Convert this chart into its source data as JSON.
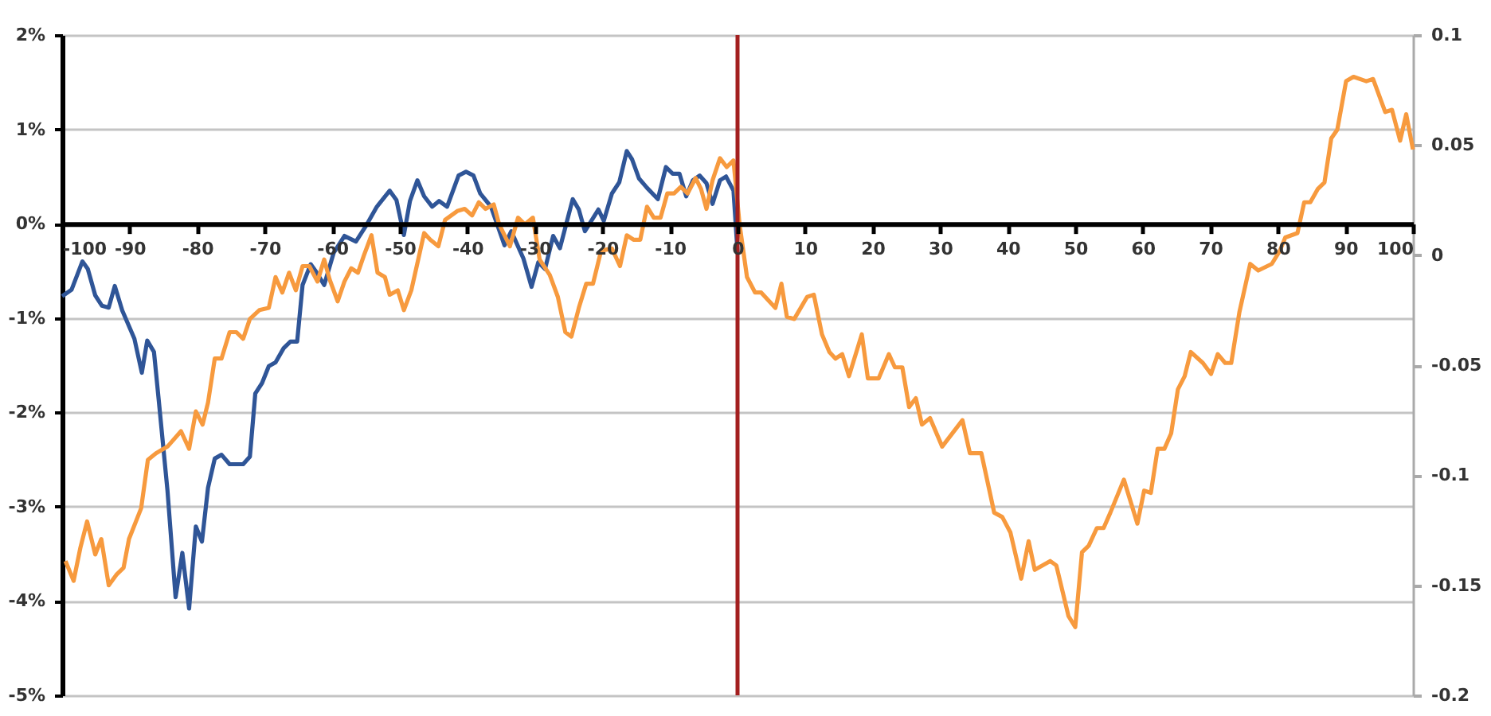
{
  "chart_data": {
    "type": "line",
    "xlim": [
      -100,
      100
    ],
    "xticks": [
      -100,
      -90,
      -80,
      -70,
      -60,
      -50,
      -40,
      -30,
      -20,
      -10,
      0,
      10,
      20,
      30,
      40,
      50,
      60,
      70,
      80,
      90,
      100
    ],
    "ylim": [
      -5,
      2
    ],
    "yticks": [
      {
        "value": -5,
        "label": "-5%"
      },
      {
        "value": -4,
        "label": "-4%"
      },
      {
        "value": -3,
        "label": "-3%"
      },
      {
        "value": -2,
        "label": "-2%"
      },
      {
        "value": -1,
        "label": "-1%"
      },
      {
        "value": 0,
        "label": "0%"
      },
      {
        "value": 1,
        "label": "1%"
      },
      {
        "value": 2,
        "label": "2%"
      }
    ],
    "y2lim": [
      -0.2,
      0.1
    ],
    "y2ticks": [
      -0.2,
      -0.15,
      -0.1,
      -0.05,
      0,
      0.05,
      0.1
    ],
    "grid": "y",
    "line_style": "solid",
    "ref_lines": [
      {
        "axis": "x",
        "value": 0,
        "color": "#a31f1f"
      }
    ],
    "series": [
      {
        "color": "#2f5597",
        "axis": "y",
        "x": [
          -100,
          -98.6,
          -97,
          -96.2,
          -95.1,
          -94.1,
          -93.1,
          -92.2,
          -91.1,
          -89.3,
          -88.2,
          -87.4,
          -86.4,
          -85.6,
          -84.4,
          -83.2,
          -82.2,
          -81.2,
          -80.2,
          -79.3,
          -78.4,
          -77.4,
          -76.4,
          -75.2,
          -73.2,
          -72.2,
          -71.4,
          -70.4,
          -69.4,
          -68.4,
          -67.2,
          -66.2,
          -65.2,
          -64.4,
          -63.2,
          -62.4,
          -61.2,
          -59.8,
          -58.2,
          -56.5,
          -54.9,
          -53.4,
          -51.5,
          -50.5,
          -49.4,
          -48.5,
          -47.4,
          -46.4,
          -45.2,
          -44.2,
          -43,
          -41.3,
          -40.2,
          -39.1,
          -38.1,
          -36.5,
          -34.5,
          -33.5,
          -31.7,
          -30.5,
          -29.5,
          -28.5,
          -27.3,
          -26.3,
          -24.4,
          -23.5,
          -22.6,
          -20.6,
          -19.8,
          -18.6,
          -17.5,
          -16.4,
          -15.6,
          -14.6,
          -13.4,
          -11.8,
          -10.6,
          -9.6,
          -8.6,
          -7.6,
          -6.6,
          -5.6,
          -4.6,
          -3.7,
          -2.6,
          -1.7,
          -0.6,
          0
        ],
        "values": [
          -0.77,
          -0.7,
          -0.4,
          -0.48,
          -0.76,
          -0.87,
          -0.89,
          -0.66,
          -0.92,
          -1.22,
          -1.58,
          -1.24,
          -1.36,
          -1.94,
          -2.83,
          -3.96,
          -3.49,
          -4.08,
          -3.21,
          -3.37,
          -2.8,
          -2.49,
          -2.45,
          -2.55,
          -2.55,
          -2.47,
          -1.8,
          -1.69,
          -1.51,
          -1.47,
          -1.32,
          -1.25,
          -1.25,
          -0.65,
          -0.43,
          -0.51,
          -0.65,
          -0.31,
          -0.13,
          -0.19,
          -0.01,
          0.18,
          0.35,
          0.25,
          -0.12,
          0.24,
          0.46,
          0.29,
          0.18,
          0.24,
          0.18,
          0.51,
          0.55,
          0.51,
          0.32,
          0.18,
          -0.23,
          -0.08,
          -0.37,
          -0.67,
          -0.41,
          -0.48,
          -0.13,
          -0.26,
          0.26,
          0.15,
          -0.08,
          0.15,
          0.03,
          0.32,
          0.44,
          0.77,
          0.68,
          0.48,
          0.38,
          0.26,
          0.6,
          0.53,
          0.53,
          0.29,
          0.46,
          0.51,
          0.43,
          0.21,
          0.46,
          0.5,
          0.35,
          -0.3
        ]
      },
      {
        "color": "#f79a3e",
        "axis": "y2",
        "x": [
          -99.5,
          -98.3,
          -97.3,
          -96.3,
          -95.1,
          -94.2,
          -93.1,
          -91.9,
          -90.9,
          -90.1,
          -88.3,
          -87.3,
          -86.1,
          -84.4,
          -82.4,
          -81.2,
          -80.2,
          -79.2,
          -78.4,
          -77.4,
          -76.4,
          -75.2,
          -74.2,
          -73.2,
          -72.2,
          -70.8,
          -69.4,
          -68.4,
          -67.4,
          -66.4,
          -65.4,
          -64.4,
          -63.4,
          -62.2,
          -61.2,
          -60.4,
          -59.2,
          -58.2,
          -57.2,
          -56.2,
          -55.3,
          -54.2,
          -53.3,
          -52.2,
          -51.5,
          -50.3,
          -49.4,
          -48.3,
          -46.4,
          -45.5,
          -44.3,
          -43.3,
          -41.5,
          -40.4,
          -39.3,
          -38.3,
          -37.3,
          -36.1,
          -35.3,
          -33.7,
          -32.5,
          -31.5,
          -30.3,
          -29.3,
          -27.8,
          -26.6,
          -25.5,
          -24.6,
          -23.5,
          -22.4,
          -21.4,
          -20.2,
          -18.6,
          -17.4,
          -16.4,
          -15.4,
          -14.4,
          -13.4,
          -12.4,
          -11.4,
          -10.4,
          -9.4,
          -8.4,
          -7.4,
          -6.2,
          -5.4,
          -4.6,
          -3.7,
          -2.6,
          -1.6,
          -0.6,
          0.3,
          1.4,
          2.6,
          3.5,
          5.6,
          6.5,
          7.3,
          8.4,
          10.3,
          11.3,
          12.5,
          13.6,
          14.5,
          15.5,
          16.5,
          18.4,
          19.3,
          20.9,
          22.4,
          23.3,
          24.4,
          25.4,
          26.4,
          27.3,
          28.5,
          30.3,
          33.3,
          34.4,
          36.1,
          38,
          39.2,
          40.4,
          42,
          43.1,
          44,
          46.3,
          47.2,
          49,
          50,
          51,
          52,
          53.2,
          54.2,
          55.2,
          57.2,
          59.2,
          60.2,
          61.2,
          62.2,
          63.2,
          64.2,
          65.2,
          66.2,
          67.1,
          68.9,
          70.1,
          71.1,
          72.2,
          73.1,
          74.3,
          75.9,
          77.1,
          79.1,
          80.3,
          81.1,
          82.9,
          83.9,
          84.8,
          85.9,
          86.9,
          87.9,
          88.8,
          90.1,
          91.2,
          93.1,
          94.1,
          95.9,
          96.9,
          98.1,
          99,
          100
        ],
        "values": [
          -0.139,
          -0.148,
          -0.133,
          -0.121,
          -0.136,
          -0.129,
          -0.15,
          -0.145,
          -0.142,
          -0.129,
          -0.115,
          -0.093,
          -0.09,
          -0.087,
          -0.08,
          -0.088,
          -0.071,
          -0.077,
          -0.067,
          -0.047,
          -0.047,
          -0.035,
          -0.035,
          -0.038,
          -0.029,
          -0.025,
          -0.024,
          -0.01,
          -0.017,
          -0.008,
          -0.016,
          -0.005,
          -0.005,
          -0.012,
          -0.002,
          -0.011,
          -0.021,
          -0.012,
          -0.006,
          -0.008,
          0,
          0.009,
          -0.008,
          -0.01,
          -0.018,
          -0.016,
          -0.025,
          -0.016,
          0.01,
          0.007,
          0.004,
          0.016,
          0.02,
          0.021,
          0.018,
          0.024,
          0.021,
          0.023,
          0.014,
          0.004,
          0.017,
          0.014,
          0.017,
          -0.002,
          -0.009,
          -0.019,
          -0.035,
          -0.037,
          -0.024,
          -0.013,
          -0.013,
          0.002,
          0.003,
          -0.005,
          0.009,
          0.007,
          0.007,
          0.022,
          0.017,
          0.017,
          0.028,
          0.028,
          0.031,
          0.028,
          0.035,
          0.03,
          0.021,
          0.034,
          0.044,
          0.04,
          0.043,
          0.014,
          -0.01,
          -0.017,
          -0.017,
          -0.024,
          -0.013,
          -0.028,
          -0.029,
          -0.019,
          -0.018,
          -0.036,
          -0.044,
          -0.047,
          -0.045,
          -0.055,
          -0.036,
          -0.056,
          -0.056,
          -0.045,
          -0.051,
          -0.051,
          -0.069,
          -0.065,
          -0.077,
          -0.074,
          -0.087,
          -0.075,
          -0.09,
          -0.09,
          -0.117,
          -0.119,
          -0.126,
          -0.147,
          -0.13,
          -0.143,
          -0.139,
          -0.141,
          -0.164,
          -0.169,
          -0.135,
          -0.132,
          -0.124,
          -0.124,
          -0.117,
          -0.102,
          -0.122,
          -0.107,
          -0.108,
          -0.088,
          -0.088,
          -0.081,
          -0.061,
          -0.055,
          -0.044,
          -0.049,
          -0.054,
          -0.045,
          -0.049,
          -0.049,
          -0.026,
          -0.004,
          -0.007,
          -0.004,
          0.002,
          0.008,
          0.01,
          0.024,
          0.024,
          0.03,
          0.033,
          0.053,
          0.057,
          0.079,
          0.081,
          0.079,
          0.08,
          0.065,
          0.066,
          0.052,
          0.064,
          0.048
        ]
      }
    ]
  }
}
